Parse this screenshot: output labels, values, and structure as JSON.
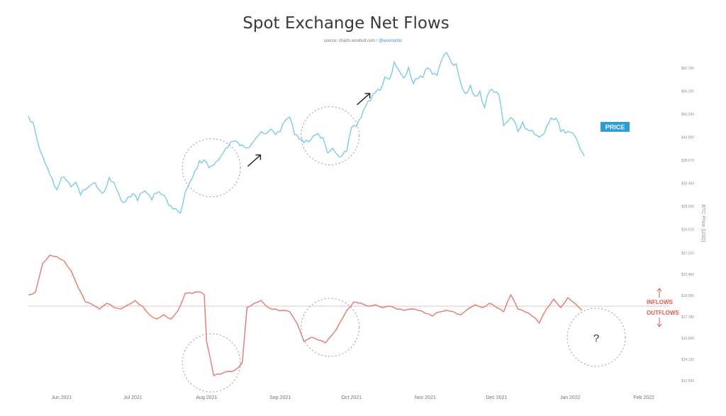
{
  "chart_data": {
    "type": "line",
    "title": "Spot Exchange Net Flows",
    "source_text": "source: charts.woobull.com / ",
    "source_handle": "@woonomic",
    "x_range": [
      "2021-05-18",
      "2022-02-12"
    ],
    "x_ticks": [
      {
        "date": "2021-06-01",
        "label": "Jun 2021"
      },
      {
        "date": "2021-07-01",
        "label": "Jul 2021"
      },
      {
        "date": "2021-08-01",
        "label": "Aug 2021"
      },
      {
        "date": "2021-09-01",
        "label": "Sep 2021"
      },
      {
        "date": "2021-10-01",
        "label": "Oct 2021"
      },
      {
        "date": "2021-11-01",
        "label": "Nov 2021"
      },
      {
        "date": "2021-12-01",
        "label": "Dec 2021"
      },
      {
        "date": "2022-01-01",
        "label": "Jan 2022"
      },
      {
        "date": "2022-02-01",
        "label": "Feb 2022"
      }
    ],
    "right_axis_label": "BTC Price (USD)",
    "price_ticks": [
      "$62,700",
      "$56,200",
      "$50,200",
      "$44,000",
      "$38,670",
      "$33,460",
      "$29,200",
      "$24,510"
    ],
    "flow_ticks": [
      "$27,310",
      "$22,460",
      "$18,000",
      "$17,780",
      "$15,600",
      "$14,130",
      "$13,500"
    ],
    "price_axis_ylim": [
      24510,
      62700
    ],
    "price_label": "PRICE",
    "inflows_label": "INFLOWS",
    "outflows_label": "OUTFLOWS",
    "question_label": "?",
    "series": [
      {
        "key": "price",
        "color": "#7ccbe6",
        "points": [
          [
            "2021-05-18",
            51200
          ],
          [
            "2021-05-20",
            49700
          ],
          [
            "2021-05-22",
            44800
          ],
          [
            "2021-05-24",
            41600
          ],
          [
            "2021-05-26",
            38800
          ],
          [
            "2021-05-28",
            36200
          ],
          [
            "2021-05-30",
            33500
          ],
          [
            "2021-06-01",
            36500
          ],
          [
            "2021-06-03",
            35700
          ],
          [
            "2021-06-05",
            34200
          ],
          [
            "2021-06-07",
            35300
          ],
          [
            "2021-06-09",
            32300
          ],
          [
            "2021-06-11",
            33500
          ],
          [
            "2021-06-13",
            34500
          ],
          [
            "2021-06-15",
            35200
          ],
          [
            "2021-06-17",
            33400
          ],
          [
            "2021-06-19",
            33100
          ],
          [
            "2021-06-21",
            36400
          ],
          [
            "2021-06-23",
            35300
          ],
          [
            "2021-06-25",
            32600
          ],
          [
            "2021-06-27",
            30400
          ],
          [
            "2021-06-29",
            31800
          ],
          [
            "2021-07-01",
            32600
          ],
          [
            "2021-07-03",
            30900
          ],
          [
            "2021-07-05",
            32900
          ],
          [
            "2021-07-07",
            32600
          ],
          [
            "2021-07-09",
            31000
          ],
          [
            "2021-07-11",
            32700
          ],
          [
            "2021-07-13",
            32300
          ],
          [
            "2021-07-15",
            31400
          ],
          [
            "2021-07-17",
            29600
          ],
          [
            "2021-07-19",
            29000
          ],
          [
            "2021-07-21",
            27900
          ],
          [
            "2021-07-23",
            32900
          ],
          [
            "2021-07-25",
            35400
          ],
          [
            "2021-07-27",
            38000
          ],
          [
            "2021-07-29",
            40500
          ],
          [
            "2021-07-31",
            40700
          ],
          [
            "2021-08-02",
            38800
          ],
          [
            "2021-08-04",
            39400
          ],
          [
            "2021-08-06",
            40600
          ],
          [
            "2021-08-08",
            42400
          ],
          [
            "2021-08-10",
            43700
          ],
          [
            "2021-08-12",
            45100
          ],
          [
            "2021-08-14",
            45000
          ],
          [
            "2021-08-16",
            44300
          ],
          [
            "2021-08-18",
            43500
          ],
          [
            "2021-08-20",
            44600
          ],
          [
            "2021-08-22",
            46100
          ],
          [
            "2021-08-24",
            47500
          ],
          [
            "2021-08-26",
            47000
          ],
          [
            "2021-08-28",
            48100
          ],
          [
            "2021-08-30",
            46800
          ],
          [
            "2021-09-01",
            47500
          ],
          [
            "2021-09-03",
            50100
          ],
          [
            "2021-09-05",
            51000
          ],
          [
            "2021-09-07",
            46800
          ],
          [
            "2021-09-09",
            45600
          ],
          [
            "2021-09-11",
            44800
          ],
          [
            "2021-09-13",
            45000
          ],
          [
            "2021-09-15",
            46500
          ],
          [
            "2021-09-17",
            47000
          ],
          [
            "2021-09-19",
            46000
          ],
          [
            "2021-09-21",
            42300
          ],
          [
            "2021-09-23",
            43500
          ],
          [
            "2021-09-25",
            41900
          ],
          [
            "2021-09-27",
            41600
          ],
          [
            "2021-09-29",
            42800
          ],
          [
            "2021-10-01",
            48500
          ],
          [
            "2021-10-03",
            48700
          ],
          [
            "2021-10-05",
            50800
          ],
          [
            "2021-10-07",
            53700
          ],
          [
            "2021-10-09",
            54900
          ],
          [
            "2021-10-11",
            56800
          ],
          [
            "2021-10-13",
            57400
          ],
          [
            "2021-10-15",
            60600
          ],
          [
            "2021-10-17",
            60100
          ],
          [
            "2021-10-19",
            64200
          ],
          [
            "2021-10-21",
            62100
          ],
          [
            "2021-10-23",
            60400
          ],
          [
            "2021-10-25",
            62900
          ],
          [
            "2021-10-27",
            59000
          ],
          [
            "2021-10-29",
            60200
          ],
          [
            "2021-10-31",
            60500
          ],
          [
            "2021-11-02",
            62800
          ],
          [
            "2021-11-04",
            61300
          ],
          [
            "2021-11-06",
            61000
          ],
          [
            "2021-11-08",
            64800
          ],
          [
            "2021-11-10",
            66500
          ],
          [
            "2021-11-12",
            64100
          ],
          [
            "2021-11-14",
            63800
          ],
          [
            "2021-11-16",
            59000
          ],
          [
            "2021-11-18",
            56600
          ],
          [
            "2021-11-20",
            58600
          ],
          [
            "2021-11-22",
            56000
          ],
          [
            "2021-11-24",
            57200
          ],
          [
            "2021-11-26",
            53300
          ],
          [
            "2021-11-28",
            57200
          ],
          [
            "2021-11-30",
            56900
          ],
          [
            "2021-12-02",
            56400
          ],
          [
            "2021-12-04",
            48900
          ],
          [
            "2021-12-06",
            50100
          ],
          [
            "2021-12-08",
            50400
          ],
          [
            "2021-12-10",
            47500
          ],
          [
            "2021-12-12",
            49800
          ],
          [
            "2021-12-14",
            48000
          ],
          [
            "2021-12-16",
            47800
          ],
          [
            "2021-12-18",
            46600
          ],
          [
            "2021-12-20",
            46600
          ],
          [
            "2021-12-22",
            48600
          ],
          [
            "2021-12-24",
            50800
          ],
          [
            "2021-12-26",
            50700
          ],
          [
            "2021-12-28",
            47500
          ],
          [
            "2021-12-30",
            47100
          ],
          [
            "2022-01-01",
            47300
          ],
          [
            "2022-01-03",
            46400
          ],
          [
            "2022-01-05",
            43500
          ],
          [
            "2022-01-07",
            41600
          ]
        ]
      },
      {
        "key": "net_flows",
        "color": "#e37a6e",
        "zero_line": 0,
        "points": [
          [
            "2021-05-18",
            8
          ],
          [
            "2021-05-21",
            10
          ],
          [
            "2021-05-24",
            30
          ],
          [
            "2021-05-27",
            36
          ],
          [
            "2021-05-30",
            35
          ],
          [
            "2021-06-02",
            32
          ],
          [
            "2021-06-05",
            25
          ],
          [
            "2021-06-08",
            13
          ],
          [
            "2021-06-11",
            3
          ],
          [
            "2021-06-14",
            1
          ],
          [
            "2021-06-17",
            -2
          ],
          [
            "2021-06-20",
            2
          ],
          [
            "2021-06-23",
            -1
          ],
          [
            "2021-06-26",
            -2
          ],
          [
            "2021-06-29",
            1
          ],
          [
            "2021-07-02",
            4
          ],
          [
            "2021-07-05",
            0
          ],
          [
            "2021-07-08",
            -6
          ],
          [
            "2021-07-11",
            -9
          ],
          [
            "2021-07-14",
            -6
          ],
          [
            "2021-07-17",
            -9
          ],
          [
            "2021-07-20",
            -3
          ],
          [
            "2021-07-23",
            9
          ],
          [
            "2021-07-26",
            9
          ],
          [
            "2021-07-29",
            10
          ],
          [
            "2021-07-31",
            8
          ],
          [
            "2021-08-01",
            -25
          ],
          [
            "2021-08-04",
            -49
          ],
          [
            "2021-08-07",
            -48
          ],
          [
            "2021-08-10",
            -46
          ],
          [
            "2021-08-13",
            -45
          ],
          [
            "2021-08-16",
            -40
          ],
          [
            "2021-08-18",
            -1
          ],
          [
            "2021-08-21",
            2
          ],
          [
            "2021-08-24",
            4
          ],
          [
            "2021-08-27",
            -1
          ],
          [
            "2021-08-30",
            -2
          ],
          [
            "2021-09-02",
            -3
          ],
          [
            "2021-09-05",
            -4
          ],
          [
            "2021-09-08",
            -12
          ],
          [
            "2021-09-11",
            -25
          ],
          [
            "2021-09-14",
            -22
          ],
          [
            "2021-09-17",
            -24
          ],
          [
            "2021-09-20",
            -26
          ],
          [
            "2021-09-23",
            -20
          ],
          [
            "2021-09-26",
            -12
          ],
          [
            "2021-09-29",
            -3
          ],
          [
            "2021-10-02",
            3
          ],
          [
            "2021-10-05",
            2
          ],
          [
            "2021-10-08",
            0
          ],
          [
            "2021-10-11",
            1
          ],
          [
            "2021-10-14",
            -1
          ],
          [
            "2021-10-17",
            0
          ],
          [
            "2021-10-20",
            -2
          ],
          [
            "2021-10-23",
            -3
          ],
          [
            "2021-10-26",
            -2
          ],
          [
            "2021-10-29",
            -3
          ],
          [
            "2021-11-01",
            -5
          ],
          [
            "2021-11-04",
            -7
          ],
          [
            "2021-11-07",
            -4
          ],
          [
            "2021-11-10",
            -3
          ],
          [
            "2021-11-13",
            -4
          ],
          [
            "2021-11-16",
            -6
          ],
          [
            "2021-11-19",
            -2
          ],
          [
            "2021-11-22",
            1
          ],
          [
            "2021-11-25",
            -1
          ],
          [
            "2021-11-28",
            2
          ],
          [
            "2021-12-01",
            -1
          ],
          [
            "2021-12-04",
            -4
          ],
          [
            "2021-12-07",
            8
          ],
          [
            "2021-12-10",
            -2
          ],
          [
            "2021-12-13",
            -4
          ],
          [
            "2021-12-16",
            -7
          ],
          [
            "2021-12-19",
            -12
          ],
          [
            "2021-12-22",
            -2
          ],
          [
            "2021-12-25",
            5
          ],
          [
            "2021-12-28",
            -1
          ],
          [
            "2021-12-31",
            6
          ],
          [
            "2022-01-03",
            2
          ],
          [
            "2022-01-06",
            -3
          ]
        ]
      }
    ],
    "annotations": {
      "circles": [
        {
          "date": "2021-08-03",
          "series": "price",
          "value": 38800
        },
        {
          "date": "2021-09-22",
          "series": "price",
          "value": 46500
        },
        {
          "date": "2021-08-03",
          "series": "net_flows",
          "value": -40
        },
        {
          "date": "2021-09-22",
          "series": "net_flows",
          "value": -15
        },
        {
          "date": "2022-01-12",
          "series": "net_flows",
          "value": -22
        }
      ],
      "arrows": [
        {
          "date": "2021-08-21",
          "series": "price",
          "value": 40500
        },
        {
          "date": "2021-10-06",
          "series": "price",
          "value": 55300
        }
      ]
    }
  }
}
